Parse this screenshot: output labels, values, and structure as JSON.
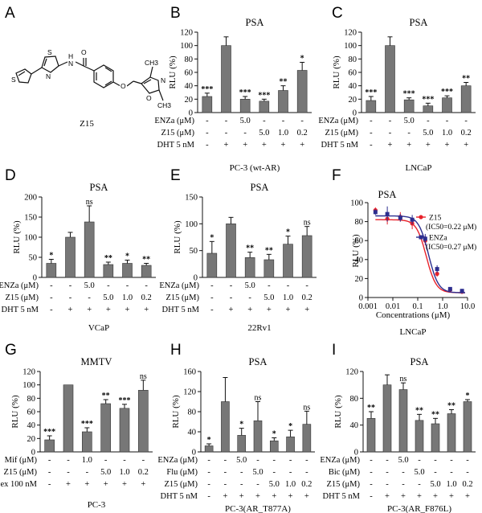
{
  "panels": {
    "A": {
      "letter": "A",
      "compound_label": "Z15",
      "atoms": {
        "S1": "S",
        "S2": "S",
        "N1": "N",
        "H": "H",
        "N2": "N",
        "O1": "O",
        "O2": "O",
        "N3": "N",
        "O3": "O",
        "CH3a": "CH3",
        "CH3b": "CH3"
      }
    },
    "F": {
      "letter": "F",
      "title": "PSA",
      "ylabel": "RLU (%)",
      "xlabel": "Concentrations (μM)",
      "caption": "LNCaP"
    }
  },
  "chart_data": [
    {
      "panel": "B",
      "type": "bar",
      "title": "PSA",
      "ylabel": "RLU (%)",
      "yticks": [
        "0",
        "20",
        "40",
        "60",
        "80",
        "100",
        "120"
      ],
      "ylim": [
        0,
        120
      ],
      "values": [
        24,
        100,
        20,
        17,
        33,
        63
      ],
      "errors": [
        5,
        13,
        4,
        3,
        7,
        12
      ],
      "sig": [
        "***",
        "",
        "***",
        "***",
        "**",
        "*"
      ],
      "conditions": [
        {
          "label": "ENZa (μM)",
          "cells": [
            "-",
            "-",
            "5.0",
            "-",
            "-",
            "-"
          ]
        },
        {
          "label": "Z15 (μM)",
          "cells": [
            "-",
            "-",
            "-",
            "5.0",
            "1.0",
            "0.2"
          ]
        },
        {
          "label": "DHT 5 nM",
          "cells": [
            "-",
            "+",
            "+",
            "+",
            "+",
            "+"
          ]
        }
      ],
      "caption": "PC-3 (wt-AR)"
    },
    {
      "panel": "C",
      "type": "bar",
      "title": "PSA",
      "ylabel": "RLU (%)",
      "yticks": [
        "0",
        "20",
        "40",
        "60",
        "80",
        "100",
        "120"
      ],
      "ylim": [
        0,
        120
      ],
      "values": [
        18,
        100,
        19,
        10,
        22,
        40
      ],
      "errors": [
        6,
        13,
        3,
        4,
        3,
        5
      ],
      "sig": [
        "***",
        "",
        "***",
        "***",
        "***",
        "**"
      ],
      "conditions": [
        {
          "label": "ENZa (μM)",
          "cells": [
            "-",
            "-",
            "5.0",
            "-",
            "-",
            "-"
          ]
        },
        {
          "label": "Z15 (μM)",
          "cells": [
            "-",
            "-",
            "-",
            "5.0",
            "1.0",
            "0.2"
          ]
        },
        {
          "label": "DHT 5 nM",
          "cells": [
            "-",
            "+",
            "+",
            "+",
            "+",
            "+"
          ]
        }
      ],
      "caption": "LNCaP"
    },
    {
      "panel": "D",
      "type": "bar",
      "title": "PSA",
      "ylabel": "RLU (%)",
      "yticks": [
        "0",
        "50",
        "100",
        "150",
        "200"
      ],
      "ylim": [
        0,
        200
      ],
      "values": [
        35,
        100,
        138,
        32,
        35,
        30
      ],
      "errors": [
        10,
        12,
        40,
        6,
        8,
        5
      ],
      "sig": [
        "*",
        "",
        "ns",
        "**",
        "*",
        "**"
      ],
      "conditions": [
        {
          "label": "ENZa (μM)",
          "cells": [
            "-",
            "-",
            "5.0",
            "-",
            "-",
            "-"
          ]
        },
        {
          "label": "Z15 (μM)",
          "cells": [
            "-",
            "-",
            "-",
            "5.0",
            "1.0",
            "0.2"
          ]
        },
        {
          "label": "DHT 5 nM",
          "cells": [
            "-",
            "+",
            "+",
            "+",
            "+",
            "+"
          ]
        }
      ],
      "caption": "VCaP"
    },
    {
      "panel": "E",
      "type": "bar",
      "title": "PSA",
      "ylabel": "RLU (%)",
      "yticks": [
        "0",
        "50",
        "100",
        "150"
      ],
      "ylim": [
        0,
        150
      ],
      "values": [
        45,
        100,
        37,
        33,
        62,
        78
      ],
      "errors": [
        22,
        12,
        10,
        10,
        15,
        17
      ],
      "sig": [
        "*",
        "",
        "**",
        "**",
        "*",
        "ns"
      ],
      "conditions": [
        {
          "label": "ENZa (μM)",
          "cells": [
            "-",
            "-",
            "5.0",
            "-",
            "-",
            "-"
          ]
        },
        {
          "label": "Z15 (μM)",
          "cells": [
            "-",
            "-",
            "-",
            "5.0",
            "1.0",
            "0.2"
          ]
        },
        {
          "label": "DHT 5 nM",
          "cells": [
            "-",
            "+",
            "+",
            "+",
            "+",
            "+"
          ]
        }
      ],
      "caption": "22Rv1"
    },
    {
      "panel": "F",
      "type": "line",
      "xscale": "log",
      "ylim": [
        0,
        100
      ],
      "yticks": [
        "0",
        "20",
        "40",
        "60",
        "80",
        "100"
      ],
      "xticks": [
        {
          "v": 0.001,
          "label": "0.001"
        },
        {
          "v": 0.01,
          "label": "0.01"
        },
        {
          "v": 0.1,
          "label": "0.1"
        },
        {
          "v": 1,
          "label": "1.0"
        },
        {
          "v": 10,
          "label": "10.0"
        }
      ],
      "x": [
        0.002,
        0.006,
        0.02,
        0.06,
        0.2,
        0.6,
        2,
        6
      ],
      "series": [
        {
          "name": "Z15",
          "ic50_text": "(IC50=0.22 μM)",
          "color": "#e8212a",
          "ic50": 0.22,
          "top": 82,
          "bottom": 5,
          "values": [
            92,
            83,
            85,
            78,
            60,
            25,
            8,
            6
          ],
          "errors": [
            3,
            6,
            5,
            6,
            5,
            3,
            2,
            2
          ]
        },
        {
          "name": "ENZa",
          "ic50_text": "(IC50=0.27 μM)",
          "color": "#2c2e8f",
          "ic50": 0.27,
          "top": 86,
          "bottom": 5,
          "values": [
            90,
            88,
            84,
            82,
            62,
            30,
            9,
            7
          ],
          "errors": [
            3,
            8,
            4,
            5,
            5,
            4,
            2,
            2
          ]
        }
      ]
    },
    {
      "panel": "G",
      "type": "bar",
      "title": "MMTV",
      "ylabel": "RLU (%)",
      "yticks": [
        "0",
        "20",
        "40",
        "60",
        "80",
        "100",
        "120"
      ],
      "ylim": [
        0,
        120
      ],
      "values": [
        18,
        100,
        30,
        72,
        65,
        92
      ],
      "errors": [
        6,
        0,
        6,
        6,
        6,
        15
      ],
      "sig": [
        "***",
        "",
        "***",
        "**",
        "***",
        "ns"
      ],
      "conditions": [
        {
          "label": "Mif (μM)",
          "cells": [
            "-",
            "-",
            "1.0",
            "-",
            "-",
            "-"
          ]
        },
        {
          "label": "Z15 (μM)",
          "cells": [
            "-",
            "-",
            "-",
            "5.0",
            "1.0",
            "0.2"
          ]
        },
        {
          "label": "Dex 100 nM",
          "cells": [
            "-",
            "+",
            "+",
            "+",
            "+",
            "+"
          ]
        }
      ],
      "caption": "PC-3"
    },
    {
      "panel": "H",
      "type": "bar",
      "title": "PSA",
      "ylabel": "RLU (%)",
      "yticks": [
        "0",
        "40",
        "80",
        "120",
        "160"
      ],
      "ylim": [
        0,
        160
      ],
      "values": [
        12,
        100,
        33,
        62,
        22,
        30,
        55
      ],
      "errors": [
        4,
        48,
        14,
        38,
        6,
        13,
        26
      ],
      "sig": [
        "*",
        "",
        "*",
        "ns",
        "*",
        "*",
        "ns"
      ],
      "conditions": [
        {
          "label": "ENZa (μM)",
          "cells": [
            "-",
            "-",
            "5.0",
            "-",
            "-",
            "-",
            "-"
          ]
        },
        {
          "label": "Flu (μM)",
          "cells": [
            "-",
            "-",
            "-",
            "5.0",
            "-",
            "-",
            "-"
          ]
        },
        {
          "label": "Z15 (μM)",
          "cells": [
            "-",
            "-",
            "-",
            "-",
            "5.0",
            "1.0",
            "0.2"
          ]
        },
        {
          "label": "DHT 5 nM",
          "cells": [
            "-",
            "+",
            "+",
            "+",
            "+",
            "+",
            "+"
          ]
        }
      ],
      "caption": "PC-3(AR_T877A)"
    },
    {
      "panel": "I",
      "type": "bar",
      "title": "PSA",
      "ylabel": "RLU (%)",
      "yticks": [
        "0",
        "40",
        "80",
        "120"
      ],
      "ylim": [
        0,
        120
      ],
      "values": [
        50,
        100,
        93,
        47,
        42,
        57,
        75
      ],
      "errors": [
        10,
        15,
        10,
        9,
        8,
        6,
        3
      ],
      "sig": [
        "**",
        "",
        "ns",
        "**",
        "**",
        "**",
        "*"
      ],
      "conditions": [
        {
          "label": "ENZa (μM)",
          "cells": [
            "-",
            "-",
            "5.0",
            "-",
            "-",
            "-",
            "-"
          ]
        },
        {
          "label": "Bic (μM)",
          "cells": [
            "-",
            "-",
            "-",
            "5.0",
            "-",
            "-",
            "-"
          ]
        },
        {
          "label": "Z15 (μM)",
          "cells": [
            "-",
            "-",
            "-",
            "-",
            "5.0",
            "1.0",
            "0.2"
          ]
        },
        {
          "label": "DHT 5 nM",
          "cells": [
            "-",
            "+",
            "+",
            "+",
            "+",
            "+",
            "+"
          ]
        }
      ],
      "caption": "PC-3(AR_F876L)"
    }
  ]
}
